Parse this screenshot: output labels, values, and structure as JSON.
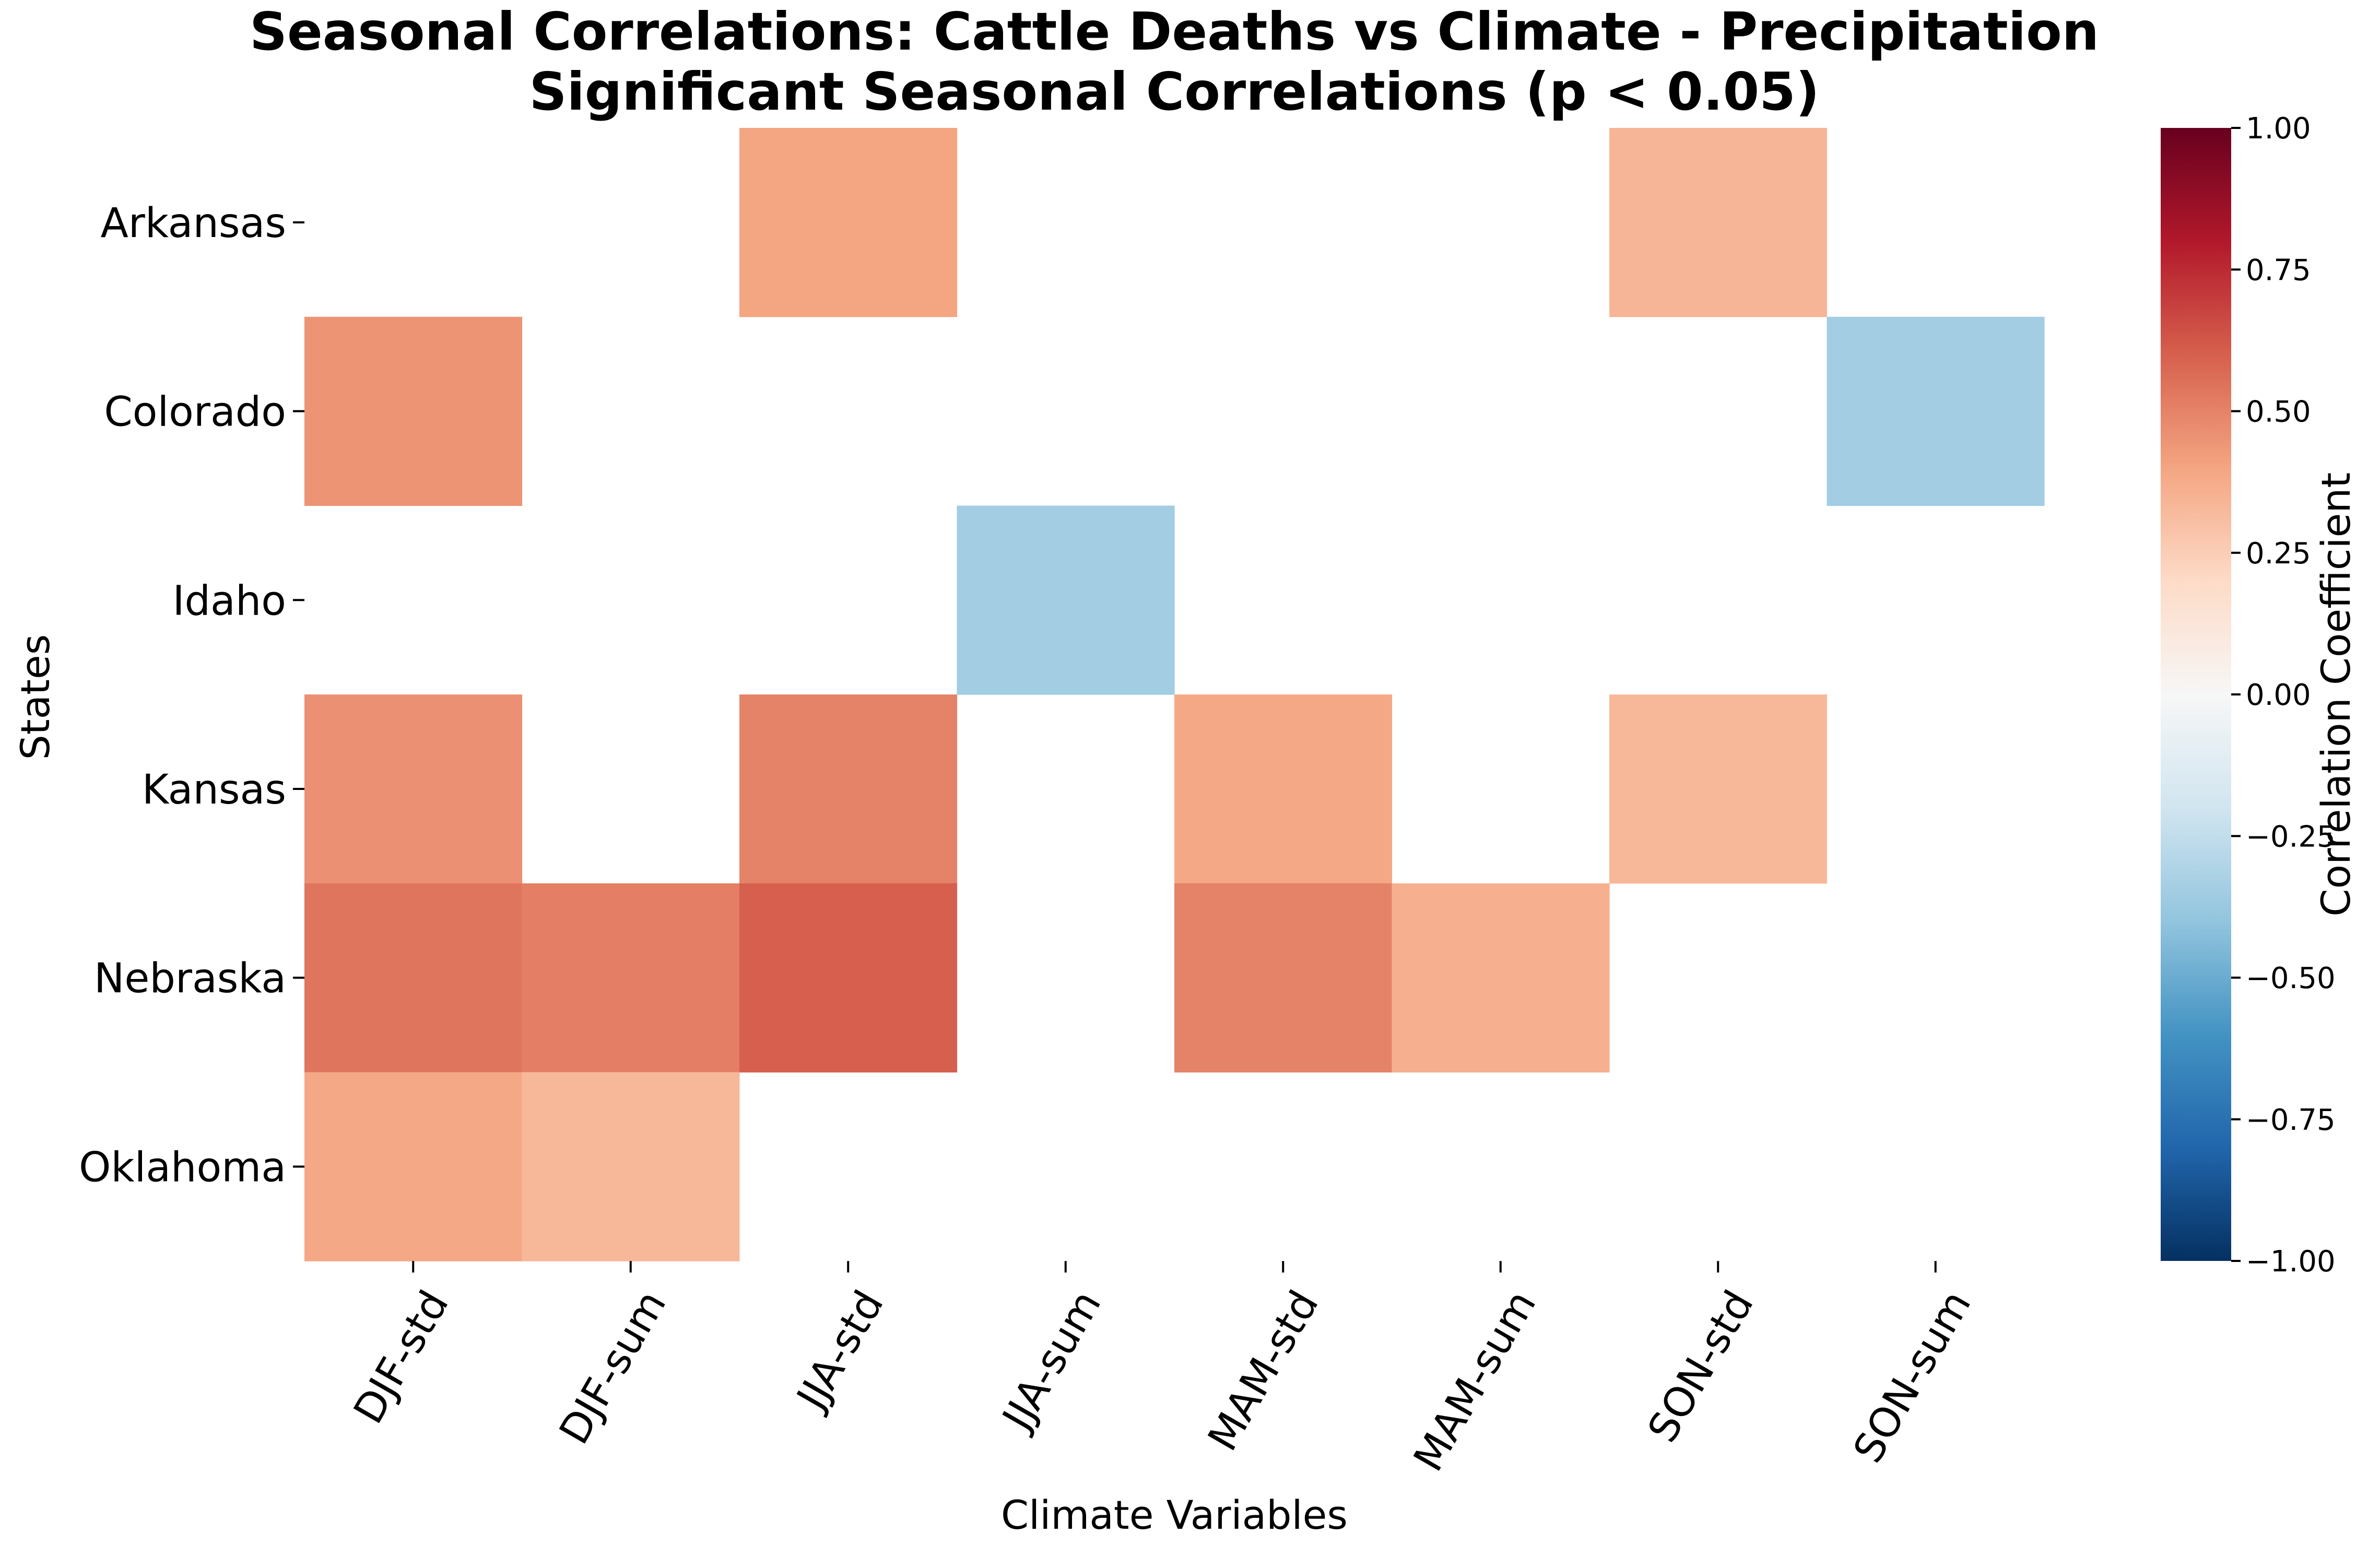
{
  "chart_data": {
    "type": "heatmap",
    "title": "Seasonal Correlations: Cattle Deaths vs Climate - Precipitation",
    "subtitle": "Significant Seasonal Correlations (p < 0.05)",
    "xlabel": "Climate Variables",
    "ylabel": "States",
    "x_categories": [
      "DJF-std",
      "DJF-sum",
      "JJA-std",
      "JJA-sum",
      "MAM-std",
      "MAM-sum",
      "SON-std",
      "SON-sum"
    ],
    "y_categories": [
      "Arkansas",
      "Colorado",
      "Idaho",
      "Kansas",
      "Nebraska",
      "Oklahoma"
    ],
    "values": [
      [
        null,
        null,
        0.4,
        null,
        null,
        null,
        0.34,
        null
      ],
      [
        0.45,
        null,
        null,
        null,
        null,
        null,
        null,
        -0.35
      ],
      [
        null,
        null,
        null,
        -0.35,
        null,
        null,
        null,
        null
      ],
      [
        0.46,
        null,
        0.5,
        null,
        0.39,
        null,
        0.33,
        null
      ],
      [
        0.54,
        0.51,
        0.6,
        null,
        0.5,
        0.36,
        null,
        null
      ],
      [
        0.39,
        0.33,
        null,
        null,
        null,
        null,
        null,
        null
      ]
    ],
    "colorbar": {
      "label": "Correlation Coefficient",
      "vmin": -1.0,
      "vmax": 1.0,
      "ticks": [
        "1.00",
        "0.75",
        "0.50",
        "0.25",
        "0.00",
        "−0.25",
        "−0.50",
        "−0.75",
        "−1.00"
      ],
      "tick_values": [
        1.0,
        0.75,
        0.5,
        0.25,
        0.0,
        -0.25,
        -0.5,
        -0.75,
        -1.0
      ],
      "colormap": "RdBu_r",
      "colors": [
        "#053061",
        "#2166ac",
        "#4393c3",
        "#92c5de",
        "#d1e5f0",
        "#f7f7f7",
        "#fddbc7",
        "#f4a582",
        "#d6604d",
        "#b2182b",
        "#67001f"
      ]
    }
  }
}
